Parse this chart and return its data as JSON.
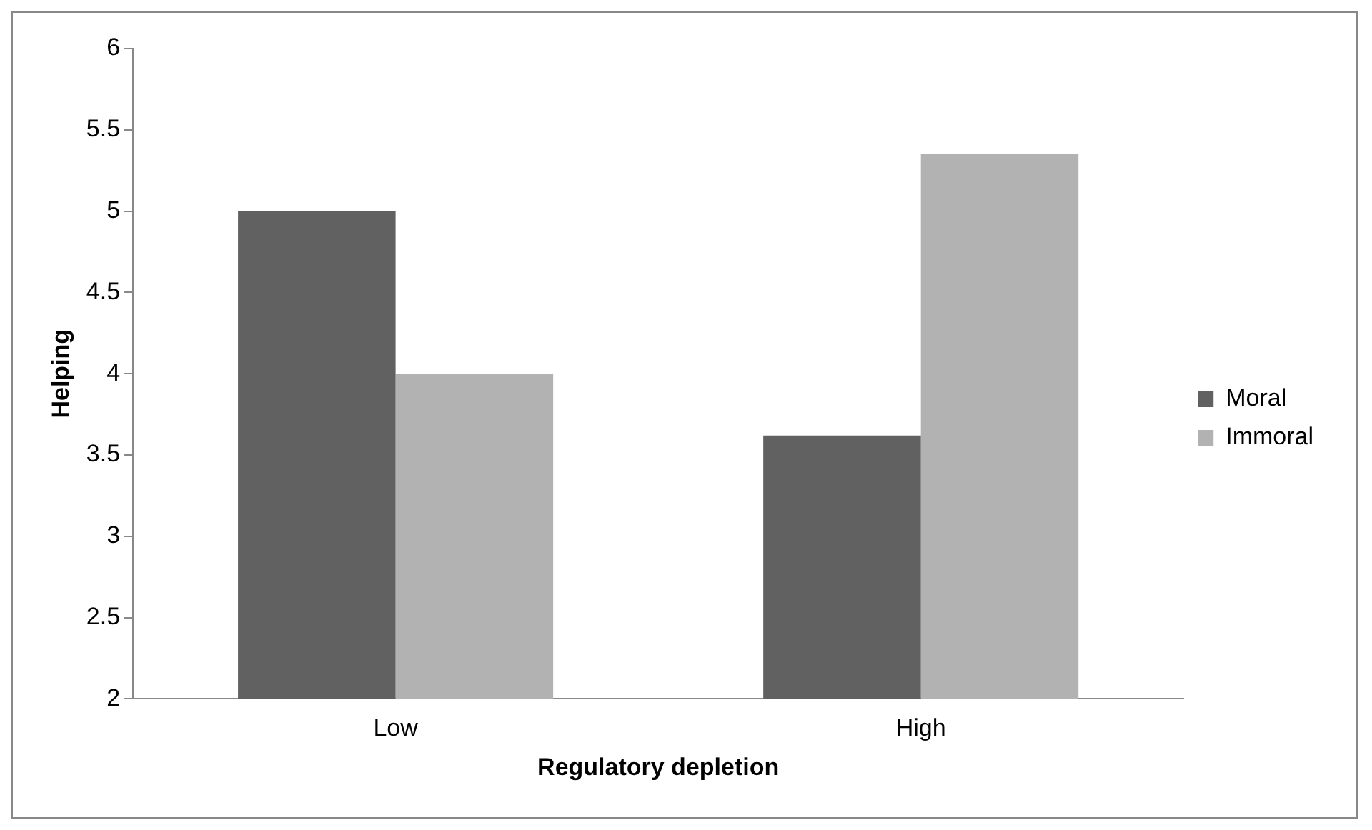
{
  "chart_data": {
    "type": "bar",
    "xlabel": "Regulatory depletion",
    "ylabel": "Helping",
    "categories": [
      "Low",
      "High"
    ],
    "series": [
      {
        "name": "Moral",
        "color": "#616161",
        "values": [
          5.0,
          3.62
        ]
      },
      {
        "name": "Immoral",
        "color": "#b2b2b2",
        "values": [
          4.0,
          5.35
        ]
      }
    ],
    "ylim": [
      2,
      6
    ],
    "yticks": [
      2,
      2.5,
      3,
      3.5,
      4,
      4.5,
      5,
      5.5,
      6
    ],
    "grid": false,
    "legend": "right"
  }
}
